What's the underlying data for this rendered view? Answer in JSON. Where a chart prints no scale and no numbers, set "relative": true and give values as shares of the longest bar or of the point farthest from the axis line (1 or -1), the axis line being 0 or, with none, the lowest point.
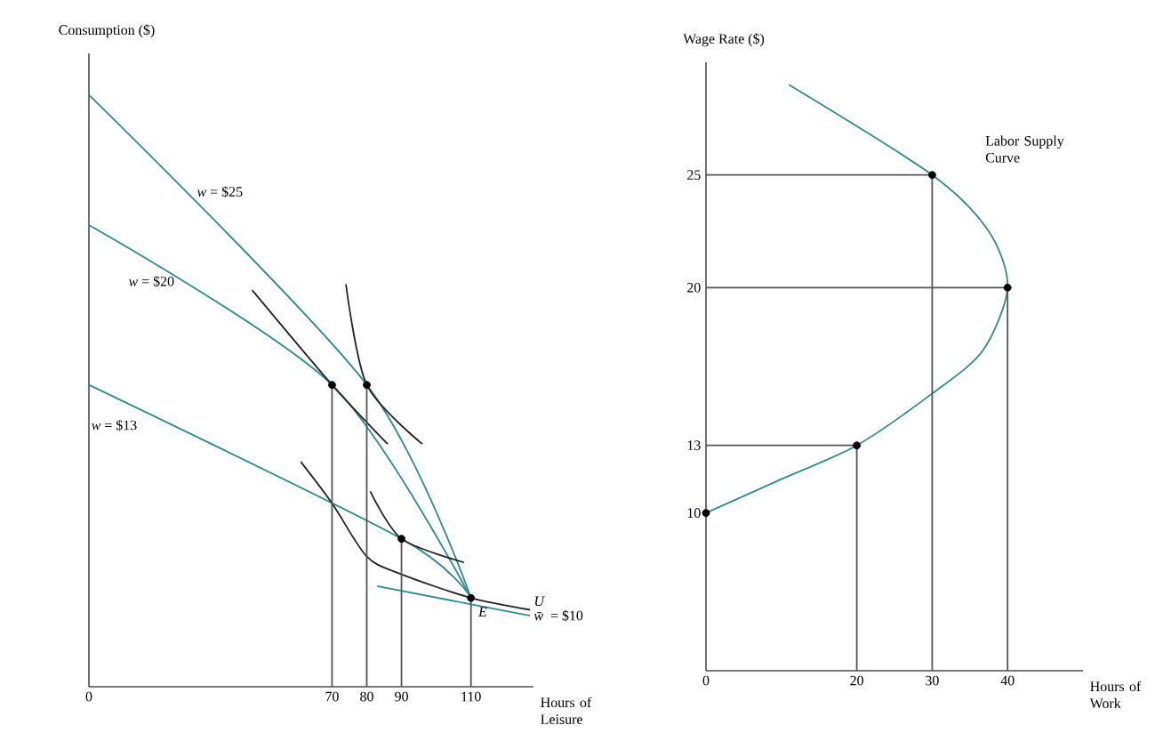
{
  "chart_data": [
    {
      "type": "line",
      "relative": true,
      "xlabel": "Hours of Leisure",
      "ylabel": "Consumption ($)",
      "xlim": [
        0,
        128
      ],
      "xticks": [
        0,
        70,
        80,
        90,
        110
      ],
      "series": [
        {
          "color": "#2f8a8f",
          "x": [
            0,
            80,
            110
          ],
          "values": [
            1,
            0.51,
            0.15
          ]
        },
        {
          "color": "#2f8a8f",
          "x": [
            0,
            70,
            110
          ],
          "values": [
            0.78,
            0.51,
            0.15
          ]
        },
        {
          "color": "#2f8a8f",
          "x": [
            0,
            90,
            110
          ],
          "values": [
            0.51,
            0.25,
            0.15
          ]
        },
        {
          "color": "#2f8a8f",
          "x": [
            83,
            127
          ],
          "values": [
            0.17,
            0.12
          ]
        },
        {
          "color": "#222222",
          "x": [
            47,
            70,
            86
          ],
          "values": [
            0.67,
            0.51,
            0.41
          ]
        },
        {
          "color": "#222222",
          "x": [
            74,
            80,
            96
          ],
          "values": [
            0.68,
            0.51,
            0.41
          ]
        },
        {
          "color": "#222222",
          "x": [
            81,
            90,
            108
          ],
          "values": [
            0.33,
            0.25,
            0.21
          ]
        },
        {
          "color": "#222222",
          "x": [
            61,
            70,
            80,
            90,
            110,
            127
          ],
          "values": [
            0.38,
            0.31,
            0.22,
            0.19,
            0.15,
            0.13
          ]
        },
        {
          "color": "#555555",
          "x": [
            70,
            70
          ],
          "values": [
            0,
            0.51
          ]
        },
        {
          "color": "#555555",
          "x": [
            80,
            80
          ],
          "values": [
            0,
            0.51
          ]
        },
        {
          "color": "#555555",
          "x": [
            90,
            90
          ],
          "values": [
            0,
            0.25
          ]
        },
        {
          "color": "#555555",
          "x": [
            110,
            110
          ],
          "values": [
            0,
            0.15
          ]
        },
        {
          "type": "scatter",
          "marker": "circle",
          "color": "#000000",
          "x": [
            70,
            80,
            90,
            110
          ],
          "values": [
            0.51,
            0.51,
            0.25,
            0.15
          ]
        }
      ],
      "annotations": [
        {
          "text": "*w* = $25",
          "x": 30,
          "y": 0.82
        },
        {
          "text": "*w* = $20",
          "x": 18,
          "y": 0.71
        },
        {
          "text": "*w* = $13",
          "x": 15,
          "y": 0.47
        },
        {
          "text": "*w̄* = $10",
          "x": 127,
          "y": 0.12
        },
        {
          "text": "*U*",
          "x": 127,
          "y": 0.13
        },
        {
          "text": "*E*",
          "x": 110,
          "y": 0.15
        }
      ]
    },
    {
      "type": "line",
      "xlabel": "Hours of Work",
      "ylabel": "Wage Rate ($)",
      "xlim": [
        0,
        50
      ],
      "xticks": [
        0,
        20,
        30,
        40
      ],
      "ylim": [
        3,
        30
      ],
      "yticks": [
        10,
        13,
        20,
        25
      ],
      "series": [
        {
          "color": "#2f8a8f",
          "x": [
            11,
            30,
            37.5,
            40,
            36.7,
            30,
            20,
            10,
            0
          ],
          "values": [
            29,
            25,
            22.5,
            20,
            17.2,
            15.3,
            13,
            11.5,
            10
          ]
        },
        {
          "color": "#555555",
          "x": [
            0,
            20
          ],
          "values": [
            13,
            13
          ]
        },
        {
          "color": "#555555",
          "x": [
            0,
            30
          ],
          "values": [
            25,
            25
          ]
        },
        {
          "color": "#555555",
          "x": [
            0,
            40
          ],
          "values": [
            20,
            20
          ]
        },
        {
          "color": "#555555",
          "x": [
            20,
            20
          ],
          "values": [
            3,
            13
          ]
        },
        {
          "color": "#555555",
          "x": [
            30,
            30
          ],
          "values": [
            3,
            25
          ]
        },
        {
          "color": "#555555",
          "x": [
            40,
            40
          ],
          "values": [
            3,
            20
          ]
        },
        {
          "type": "scatter",
          "marker": "circle",
          "color": "#000000",
          "x": [
            0,
            20,
            30,
            40
          ],
          "values": [
            10,
            13,
            25,
            20
          ]
        }
      ],
      "annotations": [
        "Labor Supply Curve"
      ]
    }
  ]
}
